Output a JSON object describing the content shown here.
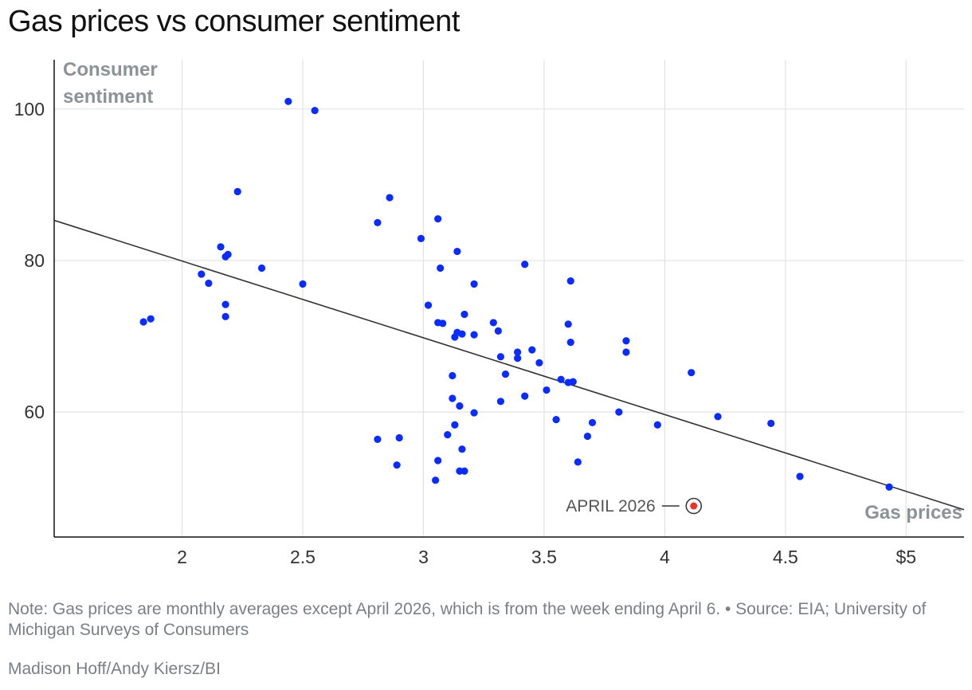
{
  "title": "Gas prices vs consumer sentiment",
  "note": "Note: Gas prices are monthly averages except April 2026, which is from the week ending April 6. • Source: EIA; University of Michigan Surveys of Consumers",
  "credit": "Madison Hoff/Andy Kiersz/BI",
  "colors": {
    "points": "#0a2cff",
    "highlight": "#e8322b",
    "trend": "#333333",
    "grid": "#e2e2e2",
    "axis_label": "#8c9397"
  },
  "chart_data": {
    "type": "scatter",
    "title": "Gas prices vs consumer sentiment",
    "xlabel": "Gas prices",
    "ylabel_lines": [
      "Consumer",
      "sentiment"
    ],
    "xlim": [
      1.47,
      5.24
    ],
    "ylim": [
      43.5,
      106.5
    ],
    "x_ticks": [
      {
        "value": 2,
        "label": "2"
      },
      {
        "value": 2.5,
        "label": "2.5"
      },
      {
        "value": 3,
        "label": "3"
      },
      {
        "value": 3.5,
        "label": "3.5"
      },
      {
        "value": 4,
        "label": "4"
      },
      {
        "value": 4.5,
        "label": "4.5"
      },
      {
        "value": 5,
        "label": "$5"
      }
    ],
    "y_ticks": [
      {
        "value": 60,
        "label": "60"
      },
      {
        "value": 80,
        "label": "80"
      },
      {
        "value": 100,
        "label": "100"
      }
    ],
    "trendline": {
      "x": [
        1.47,
        5.24
      ],
      "y": [
        85.3,
        47.1
      ]
    },
    "highlight": {
      "x": 4.12,
      "y": 47.6,
      "label": "APRIL 2026"
    },
    "points": [
      [
        1.84,
        71.9
      ],
      [
        1.87,
        72.3
      ],
      [
        2.08,
        78.2
      ],
      [
        2.11,
        77.0
      ],
      [
        2.16,
        81.8
      ],
      [
        2.18,
        80.5
      ],
      [
        2.19,
        80.8
      ],
      [
        2.18,
        74.2
      ],
      [
        2.18,
        72.6
      ],
      [
        2.23,
        89.1
      ],
      [
        2.33,
        79.0
      ],
      [
        2.44,
        101.0
      ],
      [
        2.55,
        99.8
      ],
      [
        2.5,
        76.9
      ],
      [
        2.81,
        85.0
      ],
      [
        2.86,
        88.3
      ],
      [
        2.99,
        82.9
      ],
      [
        3.06,
        85.5
      ],
      [
        3.07,
        79.0
      ],
      [
        3.14,
        81.2
      ],
      [
        3.21,
        76.9
      ],
      [
        3.02,
        74.1
      ],
      [
        3.06,
        71.8
      ],
      [
        3.08,
        71.7
      ],
      [
        3.17,
        72.9
      ],
      [
        3.14,
        70.5
      ],
      [
        3.16,
        70.3
      ],
      [
        3.13,
        69.9
      ],
      [
        3.21,
        70.2
      ],
      [
        3.29,
        71.8
      ],
      [
        3.31,
        70.7
      ],
      [
        3.42,
        79.5
      ],
      [
        3.61,
        77.3
      ],
      [
        3.6,
        71.6
      ],
      [
        3.61,
        69.2
      ],
      [
        3.84,
        69.4
      ],
      [
        3.84,
        67.9
      ],
      [
        3.39,
        67.9
      ],
      [
        3.39,
        67.1
      ],
      [
        3.45,
        68.2
      ],
      [
        3.48,
        66.5
      ],
      [
        3.32,
        67.3
      ],
      [
        3.34,
        65.0
      ],
      [
        3.12,
        64.8
      ],
      [
        3.57,
        64.3
      ],
      [
        3.6,
        63.9
      ],
      [
        3.62,
        64.0
      ],
      [
        3.51,
        62.9
      ],
      [
        3.42,
        62.1
      ],
      [
        3.12,
        61.8
      ],
      [
        3.15,
        60.8
      ],
      [
        3.32,
        61.4
      ],
      [
        3.21,
        59.9
      ],
      [
        3.55,
        59.0
      ],
      [
        3.7,
        58.6
      ],
      [
        3.81,
        60.0
      ],
      [
        3.97,
        58.3
      ],
      [
        3.13,
        58.3
      ],
      [
        3.1,
        57.0
      ],
      [
        3.16,
        55.1
      ],
      [
        3.68,
        56.8
      ],
      [
        2.81,
        56.4
      ],
      [
        2.9,
        56.6
      ],
      [
        2.89,
        53.0
      ],
      [
        3.06,
        53.6
      ],
      [
        3.15,
        52.2
      ],
      [
        3.17,
        52.2
      ],
      [
        3.05,
        51.0
      ],
      [
        3.64,
        53.4
      ],
      [
        4.11,
        65.2
      ],
      [
        4.22,
        59.4
      ],
      [
        4.44,
        58.5
      ],
      [
        4.56,
        51.5
      ],
      [
        4.93,
        50.1
      ]
    ]
  }
}
